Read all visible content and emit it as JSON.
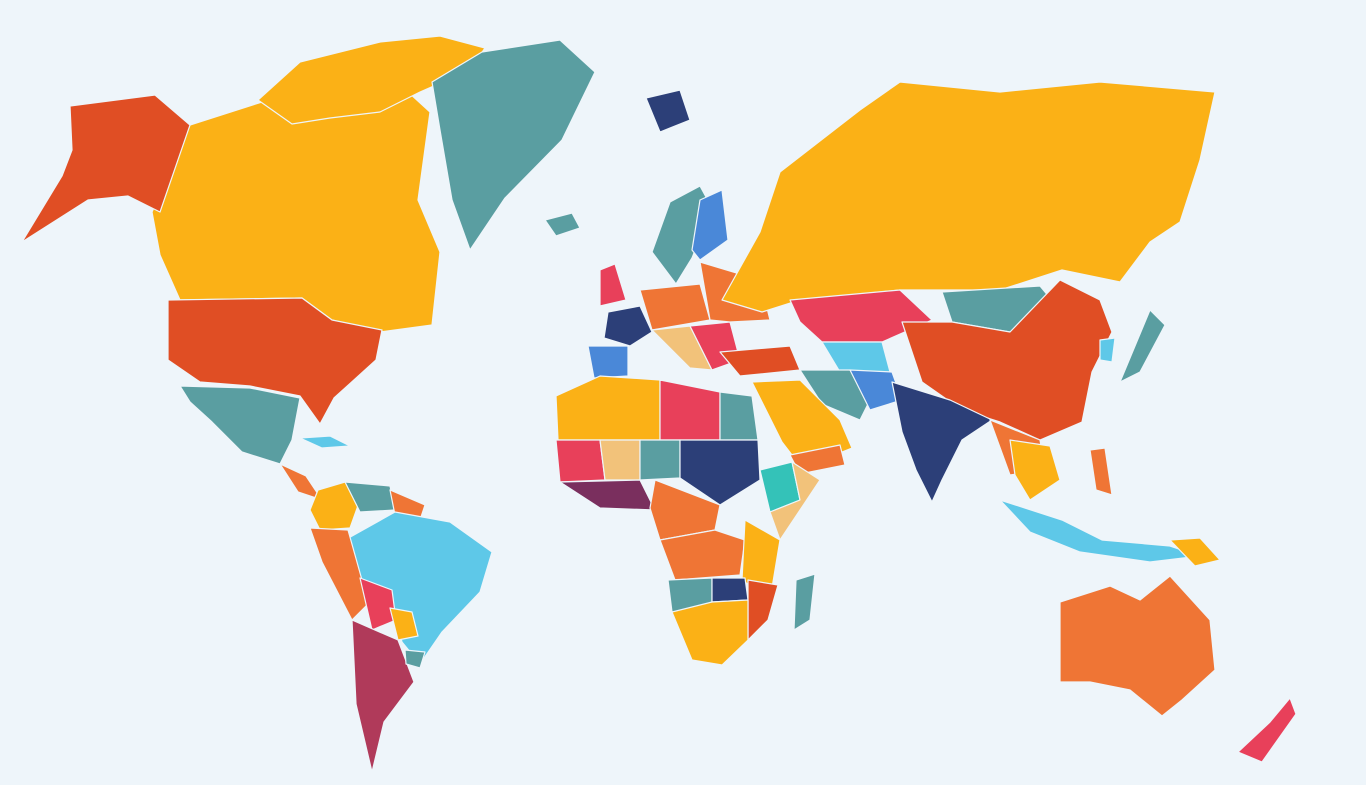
{
  "map": {
    "background": "#eef5fa",
    "palette": {
      "red_orange": "#e04e24",
      "yellow": "#fbb116",
      "teal": "#5a9ea1",
      "navy": "#2c3f78",
      "light_blue": "#5ec8e8",
      "pink": "#e8405a",
      "maroon": "#b03a5a",
      "orange": "#ef7535",
      "blue": "#4a88d8",
      "tan": "#f2c27a",
      "aqua": "#34c2b8",
      "purple": "#7a2f5e"
    },
    "regions": {
      "alaska": "red_orange",
      "canada": "yellow",
      "arctic_islands": "yellow",
      "greenland": "teal",
      "iceland": "teal",
      "svalbard": "navy",
      "usa": "red_orange",
      "mexico": "teal",
      "central_america": "orange",
      "caribbean": "light_blue",
      "colombia": "yellow",
      "venezuela": "teal",
      "guianas": "orange",
      "peru": "orange",
      "brazil": "light_blue",
      "bolivia": "pink",
      "paraguay": "yellow",
      "argentina_chile": "maroon",
      "uruguay": "teal",
      "scandinavia": "teal",
      "finland": "blue",
      "uk": "pink",
      "france": "navy",
      "iberia": "blue",
      "central_europe": "orange",
      "italy": "tan",
      "balkans": "pink",
      "eastern_europe": "orange",
      "turkey": "red_orange",
      "russia": "yellow",
      "kazakhstan": "pink",
      "mongolia": "teal",
      "china": "red_orange",
      "japan": "teal",
      "korea": "light_blue",
      "iran": "teal",
      "central_asia": "light_blue",
      "afghanistan": "blue",
      "saudi_arabia": "yellow",
      "yemen": "orange",
      "india": "navy",
      "southeast_asia": "orange",
      "indochina": "yellow",
      "philippines": "orange",
      "indonesia": "light_blue",
      "new_guinea": "yellow",
      "north_africa_west": "yellow",
      "libya": "pink",
      "egypt": "teal",
      "west_africa": "pink",
      "sahel": "tan",
      "chad": "teal",
      "sudan": "navy",
      "ethiopia": "aqua",
      "horn": "tan",
      "nigeria": "purple",
      "central_africa": "orange",
      "congo": "orange",
      "east_africa": "yellow",
      "angola": "teal",
      "zambia": "navy",
      "mozambique": "red_orange",
      "southern_africa": "yellow",
      "madagascar": "teal",
      "australia": "orange",
      "new_zealand": "pink"
    }
  }
}
